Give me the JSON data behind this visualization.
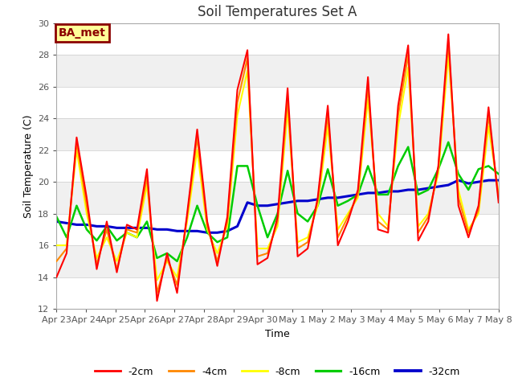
{
  "title": "Soil Temperatures Set A",
  "xlabel": "Time",
  "ylabel": "Soil Temperature (C)",
  "ylim": [
    12,
    30
  ],
  "yticks": [
    12,
    14,
    16,
    18,
    20,
    22,
    24,
    26,
    28,
    30
  ],
  "background_color": "#ffffff",
  "plot_bg_color": "#f0f0f0",
  "annotation_text": "BA_met",
  "annotation_bg": "#ffff99",
  "annotation_border": "#8B0000",
  "annotation_text_color": "#8B0000",
  "legend_labels": [
    "-2cm",
    "-4cm",
    "-8cm",
    "-16cm",
    "-32cm"
  ],
  "legend_colors": [
    "#ff0000",
    "#ff8800",
    "#ffff00",
    "#00cc00",
    "#0000cc"
  ],
  "line_widths": [
    1.5,
    1.5,
    1.5,
    1.8,
    2.2
  ],
  "x_tick_labels": [
    "Apr 23",
    "Apr 24",
    "Apr 25",
    "Apr 26",
    "Apr 27",
    "Apr 28",
    "Apr 29",
    "Apr 30",
    "May 1",
    "May 2",
    "May 3",
    "May 4",
    "May 5",
    "May 6",
    "May 7",
    "May 8"
  ],
  "series": {
    "neg2cm": [
      14.0,
      15.5,
      22.8,
      19.0,
      14.5,
      17.5,
      14.3,
      17.3,
      17.0,
      20.8,
      12.5,
      15.5,
      13.0,
      18.0,
      23.3,
      17.5,
      14.7,
      17.8,
      25.8,
      28.3,
      14.8,
      15.2,
      17.8,
      25.9,
      15.3,
      15.8,
      19.0,
      24.8,
      16.0,
      17.5,
      19.5,
      26.6,
      17.0,
      16.8,
      24.8,
      28.6,
      16.3,
      17.5,
      21.0,
      29.3,
      18.5,
      16.5,
      18.5,
      24.7,
      18.7
    ],
    "neg4cm": [
      15.0,
      15.8,
      22.5,
      18.5,
      14.8,
      17.0,
      14.5,
      17.0,
      16.8,
      20.3,
      13.0,
      15.2,
      13.5,
      17.8,
      22.8,
      17.2,
      15.0,
      17.5,
      25.0,
      27.8,
      15.3,
      15.5,
      17.5,
      25.2,
      15.8,
      16.2,
      18.8,
      24.2,
      16.5,
      17.8,
      19.2,
      26.0,
      17.5,
      17.0,
      24.2,
      28.0,
      16.8,
      17.8,
      20.8,
      28.8,
      19.0,
      16.8,
      18.2,
      24.2,
      19.0
    ],
    "neg8cm": [
      16.0,
      16.0,
      22.0,
      18.0,
      15.2,
      16.5,
      15.0,
      16.8,
      16.5,
      19.8,
      13.8,
      15.0,
      14.0,
      17.5,
      22.0,
      17.0,
      15.5,
      17.2,
      24.2,
      27.0,
      15.8,
      15.8,
      17.2,
      24.5,
      16.2,
      16.5,
      18.5,
      23.5,
      17.0,
      18.0,
      19.0,
      25.2,
      18.0,
      17.2,
      23.5,
      27.2,
      17.2,
      18.0,
      20.5,
      28.0,
      19.5,
      17.0,
      18.0,
      23.5,
      19.2
    ],
    "neg16cm": [
      17.8,
      16.5,
      18.5,
      17.0,
      16.3,
      17.2,
      16.3,
      16.8,
      16.5,
      17.5,
      15.2,
      15.5,
      15.0,
      16.5,
      18.5,
      16.8,
      16.2,
      16.5,
      21.0,
      21.0,
      18.5,
      16.5,
      18.0,
      20.7,
      18.0,
      17.5,
      18.5,
      20.8,
      18.5,
      18.8,
      19.2,
      21.0,
      19.2,
      19.2,
      21.0,
      22.2,
      19.2,
      19.5,
      20.8,
      22.5,
      20.5,
      19.5,
      20.8,
      21.0,
      20.5
    ],
    "neg32cm": [
      17.5,
      17.4,
      17.3,
      17.3,
      17.2,
      17.2,
      17.1,
      17.1,
      17.1,
      17.1,
      17.0,
      17.0,
      16.9,
      16.9,
      16.9,
      16.8,
      16.8,
      16.9,
      17.2,
      18.7,
      18.5,
      18.5,
      18.6,
      18.7,
      18.8,
      18.8,
      18.9,
      19.0,
      19.0,
      19.1,
      19.2,
      19.3,
      19.3,
      19.4,
      19.4,
      19.5,
      19.5,
      19.6,
      19.7,
      19.8,
      20.1,
      19.9,
      20.0,
      20.1,
      20.1
    ]
  }
}
